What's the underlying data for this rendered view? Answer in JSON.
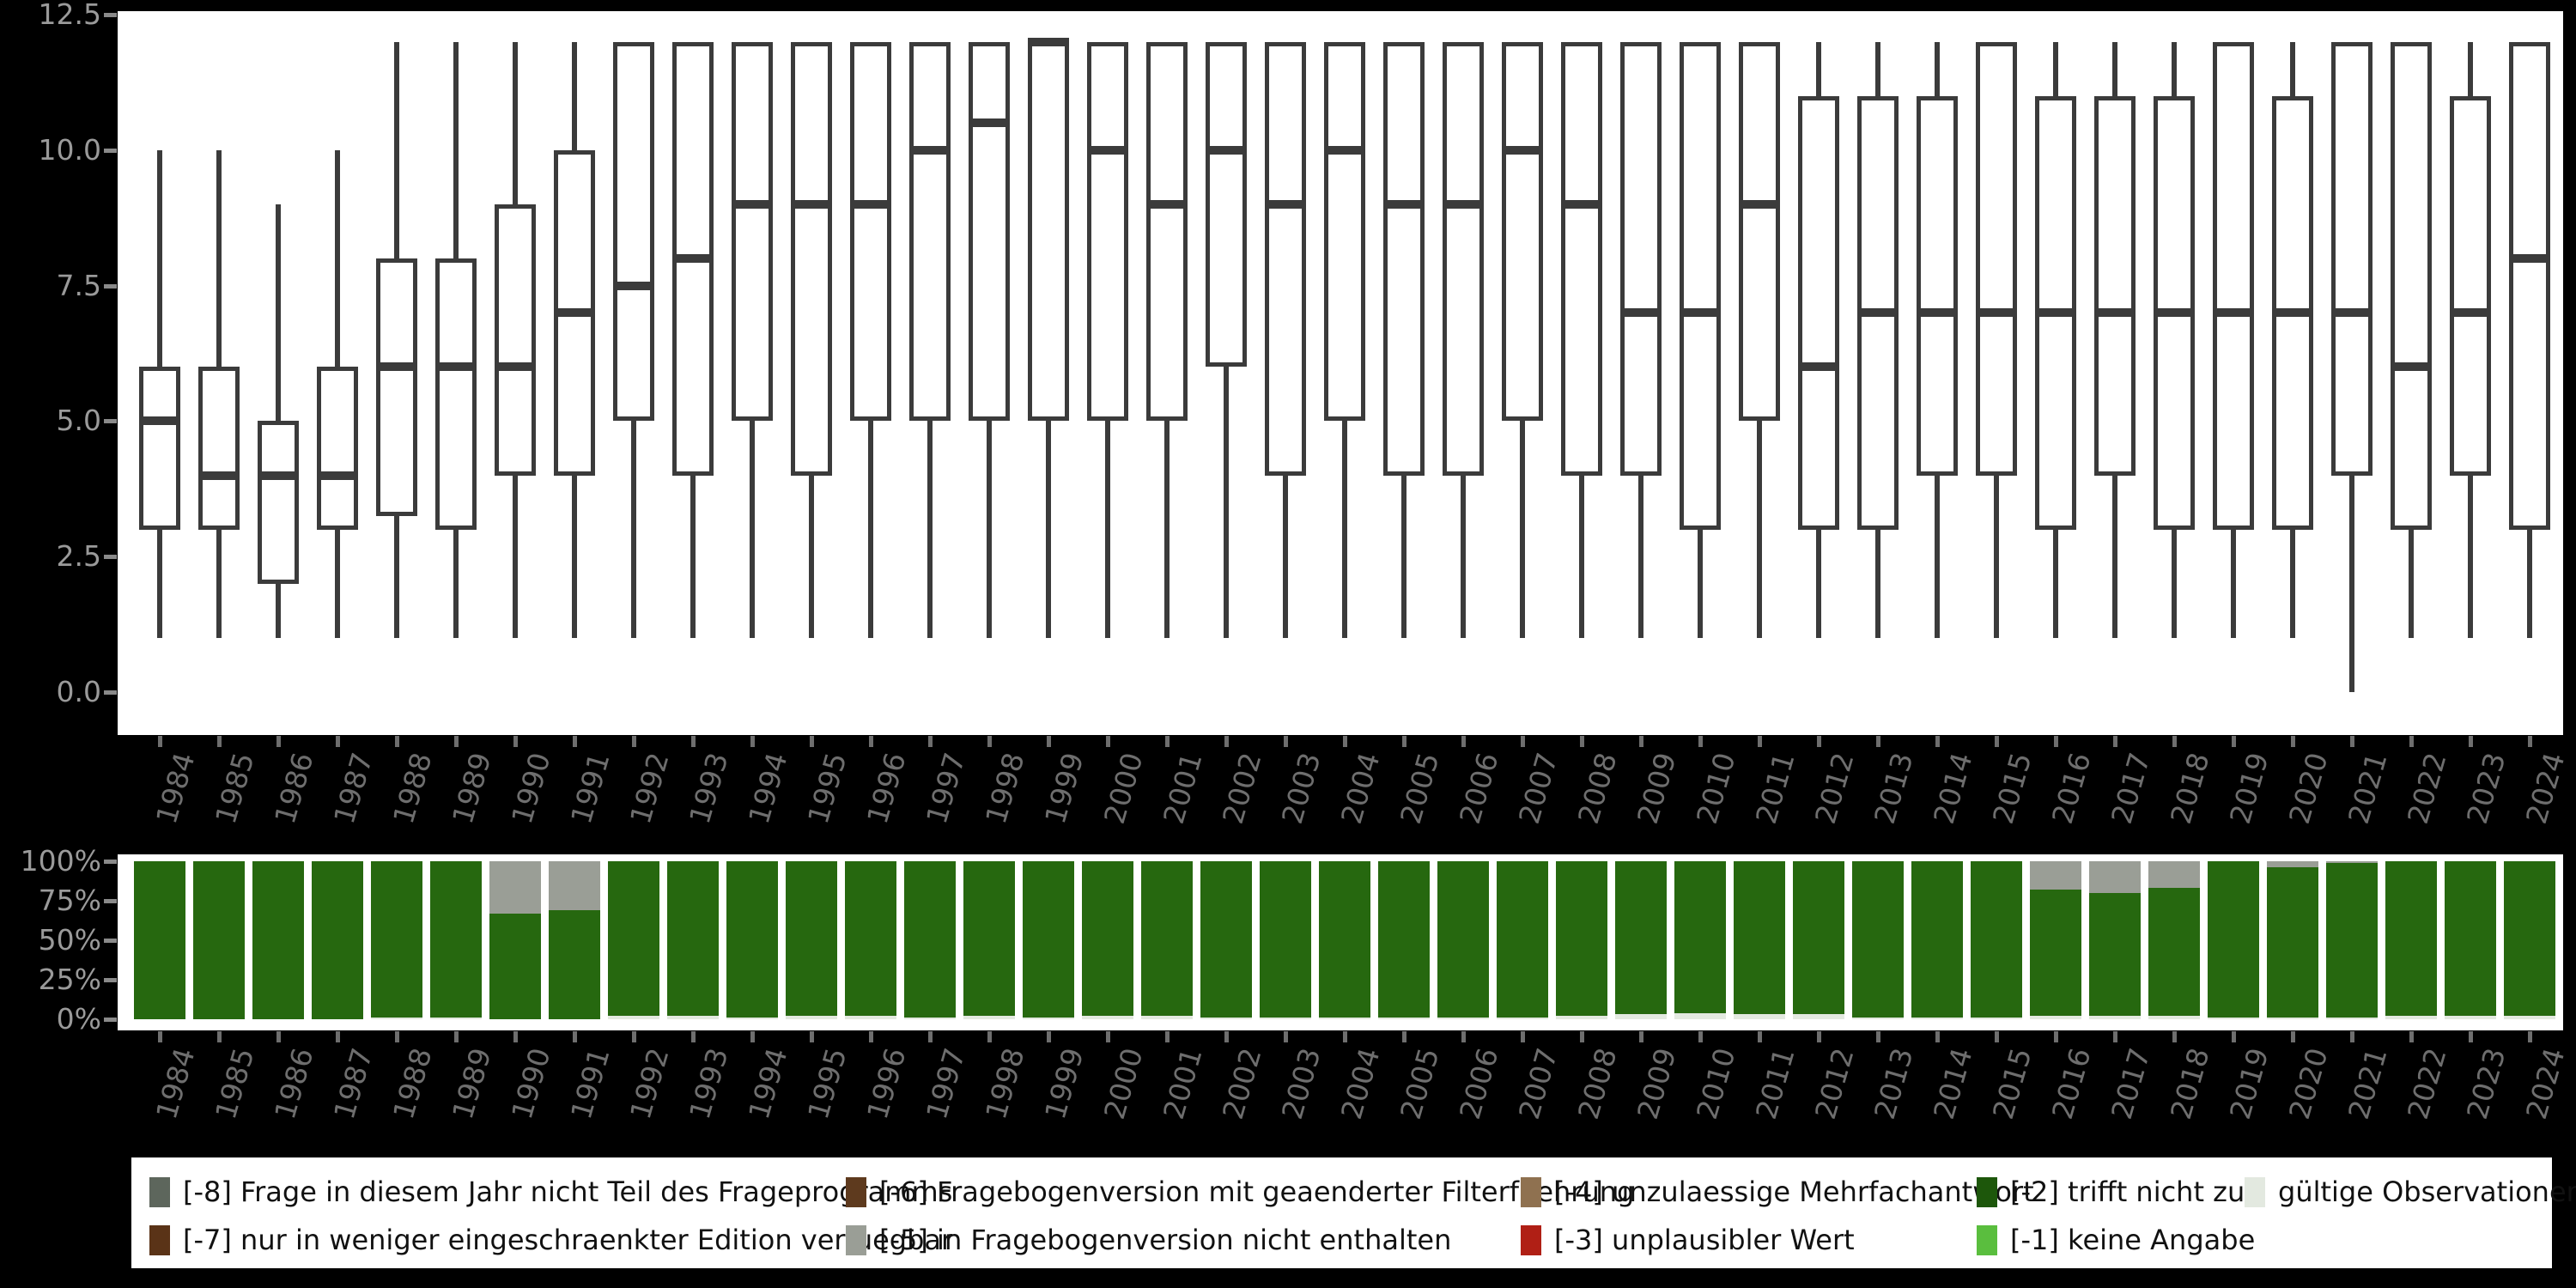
{
  "page": {
    "background": "#000000",
    "panel_background": "#ffffff",
    "box_line_color": "#3b3b3b",
    "axis_text_color": "#9a9a9a",
    "year_text_color": "#6e6e6e"
  },
  "chart_data": [
    {
      "type": "boxplot",
      "title": "",
      "xlabel": "",
      "ylabel": "",
      "ylim": [
        0,
        12.5
      ],
      "grid": false,
      "yticks": [
        12.5,
        10.0,
        7.5,
        5.0,
        2.5,
        0.0
      ],
      "ytick_labels": [
        "12.5",
        "10.0",
        "7.5",
        "5.0",
        "2.5",
        "0.0"
      ],
      "categories": [
        "1984",
        "1985",
        "1986",
        "1987",
        "1988",
        "1989",
        "1990",
        "1991",
        "1992",
        "1993",
        "1994",
        "1995",
        "1996",
        "1997",
        "1998",
        "1999",
        "2000",
        "2001",
        "2002",
        "2003",
        "2004",
        "2005",
        "2006",
        "2007",
        "2008",
        "2009",
        "2010",
        "2011",
        "2012",
        "2013",
        "2014",
        "2015",
        "2016",
        "2017",
        "2018",
        "2019",
        "2020",
        "2021",
        "2022",
        "2023",
        "2024"
      ],
      "whisker_low": [
        1,
        1,
        1,
        1,
        1,
        1,
        1,
        1,
        1,
        1,
        1,
        1,
        1,
        1,
        1,
        1,
        1,
        1,
        1,
        1,
        1,
        1,
        1,
        1,
        1,
        1,
        1,
        1,
        1,
        1,
        1,
        1,
        1,
        1,
        1,
        1,
        1,
        0,
        1,
        1,
        1
      ],
      "q1": [
        3,
        3,
        2,
        3,
        3.25,
        3,
        4,
        4,
        5,
        4,
        5,
        4,
        5,
        5,
        5,
        5,
        5,
        5,
        6,
        4,
        5,
        4,
        4,
        5,
        4,
        4,
        3,
        5,
        3,
        3,
        4,
        4,
        3,
        4,
        3,
        3,
        3,
        4,
        3,
        4,
        3
      ],
      "median": [
        5,
        4,
        4,
        4,
        6,
        6,
        6,
        7,
        7.5,
        8,
        9,
        9,
        9,
        10,
        10.5,
        12,
        10,
        9,
        10,
        9,
        10,
        9,
        9,
        10,
        9,
        7,
        7,
        9,
        6,
        7,
        7,
        7,
        7,
        7,
        7,
        7,
        7,
        7,
        6,
        7,
        8
      ],
      "q3": [
        6,
        6,
        5,
        6,
        8,
        8,
        9,
        10,
        12,
        12,
        12,
        12,
        12,
        12,
        12,
        12,
        12,
        12,
        12,
        12,
        12,
        12,
        12,
        12,
        12,
        12,
        12,
        12,
        11,
        11,
        11,
        12,
        11,
        11,
        11,
        12,
        11,
        12,
        12,
        11,
        12
      ],
      "whisker_high": [
        10,
        10,
        9,
        10,
        12,
        12,
        12,
        12,
        12,
        12,
        12,
        12,
        12,
        12,
        12,
        12,
        12,
        12,
        12,
        12,
        12,
        12,
        12,
        12,
        12,
        12,
        12,
        12,
        12,
        12,
        12,
        12,
        12,
        12,
        12,
        12,
        12,
        12,
        12,
        12,
        12
      ]
    },
    {
      "type": "bar",
      "stacked": true,
      "title": "",
      "ylim_percent": [
        0,
        100
      ],
      "yticks": [
        100,
        75,
        50,
        25,
        0
      ],
      "ytick_labels": [
        "100%",
        "75%",
        "50%",
        "25%",
        "0%"
      ],
      "categories": [
        "1984",
        "1985",
        "1986",
        "1987",
        "1988",
        "1989",
        "1990",
        "1991",
        "1992",
        "1993",
        "1994",
        "1995",
        "1996",
        "1997",
        "1998",
        "1999",
        "2000",
        "2001",
        "2002",
        "2003",
        "2004",
        "2005",
        "2006",
        "2007",
        "2008",
        "2009",
        "2010",
        "2011",
        "2012",
        "2013",
        "2014",
        "2015",
        "2016",
        "2017",
        "2018",
        "2019",
        "2020",
        "2021",
        "2022",
        "2023",
        "2024"
      ],
      "series": [
        {
          "name": "gültige Observationen",
          "color": "#e3e9e0",
          "values": [
            0,
            0,
            0,
            0,
            1,
            1,
            0,
            0,
            2,
            2,
            1,
            2,
            2,
            1,
            2,
            1,
            2,
            2,
            1,
            1,
            1,
            1,
            1,
            1,
            2,
            3,
            4,
            3,
            3,
            1,
            1,
            1,
            2,
            2,
            2,
            1,
            1,
            1,
            2,
            2,
            2
          ]
        },
        {
          "name": "[-2] trifft nicht zu",
          "color": "#26680f",
          "values": [
            100,
            100,
            100,
            100,
            99,
            99,
            67,
            69,
            98,
            98,
            99,
            98,
            98,
            99,
            98,
            99,
            98,
            98,
            99,
            99,
            99,
            99,
            99,
            99,
            98,
            97,
            96,
            97,
            97,
            99,
            99,
            99,
            80,
            78,
            81,
            99,
            95,
            98,
            98,
            98,
            98
          ]
        },
        {
          "name": "[-5] in Fragebogenversion nicht enthalten",
          "color": "#9a9e96",
          "values": [
            0,
            0,
            0,
            0,
            0,
            0,
            33,
            31,
            0,
            0,
            0,
            0,
            0,
            0,
            0,
            0,
            0,
            0,
            0,
            0,
            0,
            0,
            0,
            0,
            0,
            0,
            0,
            0,
            0,
            0,
            0,
            0,
            18,
            20,
            17,
            0,
            4,
            1,
            0,
            0,
            0
          ]
        }
      ]
    }
  ],
  "legend": {
    "background": "#ffffff",
    "items": [
      {
        "label": "[-8] Frage in diesem Jahr nicht Teil des Frageprogramms",
        "color": "#5d665c",
        "col": 0,
        "row": 0
      },
      {
        "label": "[-7] nur in weniger eingeschraenkter Edition verfuegbar",
        "color": "#5a3317",
        "col": 0,
        "row": 1
      },
      {
        "label": "[-6] Fragebogenversion mit geaenderter Filterfuehrung",
        "color": "#5e3a1e",
        "col": 1,
        "row": 0
      },
      {
        "label": "[-5] in Fragebogenversion nicht enthalten",
        "color": "#9a9e96",
        "col": 1,
        "row": 1
      },
      {
        "label": "[-4] unzulaessige Mehrfachantwort",
        "color": "#8f7150",
        "col": 2,
        "row": 0
      },
      {
        "label": "[-3] unplausibler Wert",
        "color": "#b01f15",
        "col": 2,
        "row": 1
      },
      {
        "label": "[-2] trifft nicht zu",
        "color": "#1d570b",
        "col": 3,
        "row": 0
      },
      {
        "label": "[-1] keine Angabe",
        "color": "#5abe3e",
        "col": 3,
        "row": 1
      },
      {
        "label": "gültige Observationen",
        "color": "#e3e9e0",
        "col": 4,
        "row": 0
      }
    ]
  }
}
